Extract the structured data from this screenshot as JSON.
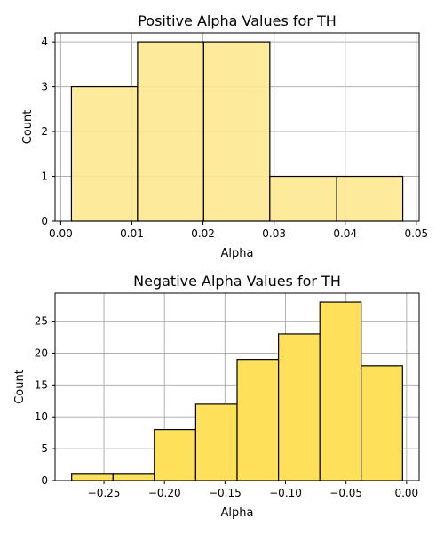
{
  "chart_data": [
    {
      "type": "bar",
      "title": "Positive Alpha Values for TH",
      "xlabel": "Alpha",
      "ylabel": "Count",
      "bar_color": "#fde88f",
      "bar_alpha": 0.9,
      "bins": [
        {
          "x0": 0.0015,
          "x1": 0.0108,
          "count": 3
        },
        {
          "x0": 0.0108,
          "x1": 0.0201,
          "count": 4
        },
        {
          "x0": 0.0201,
          "x1": 0.0294,
          "count": 4
        },
        {
          "x0": 0.0294,
          "x1": 0.0388,
          "count": 1
        },
        {
          "x0": 0.0388,
          "x1": 0.0481,
          "count": 1
        }
      ],
      "xlim": [
        -0.0008,
        0.0504
      ],
      "ylim": [
        0,
        4.2
      ],
      "xticks": [
        0.0,
        0.01,
        0.02,
        0.03,
        0.04,
        0.05
      ],
      "xtick_labels": [
        "0.00",
        "0.01",
        "0.02",
        "0.03",
        "0.04",
        "0.05"
      ],
      "yticks": [
        0,
        1,
        2,
        3,
        4
      ],
      "ytick_labels": [
        "0",
        "1",
        "2",
        "3",
        "4"
      ],
      "grid": true
    },
    {
      "type": "bar",
      "title": "Negative Alpha Values for TH",
      "xlabel": "Alpha",
      "ylabel": "Count",
      "bar_color": "#ffe05a",
      "bar_alpha": 1.0,
      "bins": [
        {
          "x0": -0.2767,
          "x1": -0.2425,
          "count": 1
        },
        {
          "x0": -0.2425,
          "x1": -0.2084,
          "count": 1
        },
        {
          "x0": -0.2084,
          "x1": -0.1742,
          "count": 8
        },
        {
          "x0": -0.1742,
          "x1": -0.14,
          "count": 12
        },
        {
          "x0": -0.14,
          "x1": -0.1058,
          "count": 19
        },
        {
          "x0": -0.1058,
          "x1": -0.0716,
          "count": 23
        },
        {
          "x0": -0.0716,
          "x1": -0.0375,
          "count": 28
        },
        {
          "x0": -0.0375,
          "x1": -0.0033,
          "count": 18
        }
      ],
      "xlim": [
        -0.2904,
        0.0104
      ],
      "ylim": [
        0,
        29.4
      ],
      "xticks": [
        -0.25,
        -0.2,
        -0.15,
        -0.1,
        -0.05,
        0.0
      ],
      "xtick_labels": [
        "−0.25",
        "−0.20",
        "−0.15",
        "−0.10",
        "−0.05",
        "0.00"
      ],
      "yticks": [
        0,
        5,
        10,
        15,
        20,
        25
      ],
      "ytick_labels": [
        "0",
        "5",
        "10",
        "15",
        "20",
        "25"
      ],
      "grid": true
    }
  ]
}
